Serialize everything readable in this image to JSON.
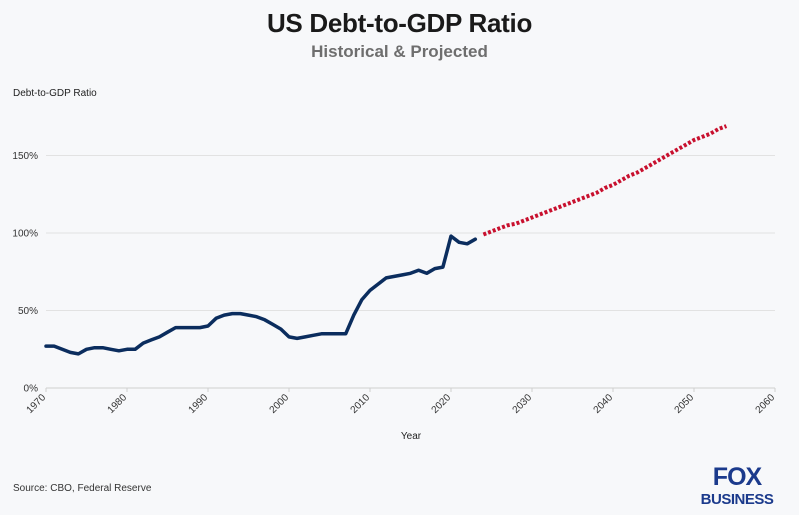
{
  "title": "US Debt-to-GDP Ratio",
  "subtitle": "Historical & Projected",
  "source": "Source: CBO, Federal Reserve",
  "logo": {
    "line1": "FOX",
    "line2": "BUSINESS",
    "color": "#1b3a8c"
  },
  "colors": {
    "historical": "#0b2d5e",
    "projected": "#c8102e",
    "grid": "#e2e2e2"
  },
  "chart_data": {
    "type": "line",
    "title": "US Debt-to-GDP Ratio",
    "subtitle": "Historical & Projected",
    "xlabel": "Year",
    "ylabel": "Debt-to-GDP Ratio",
    "xlim": [
      1970,
      2060
    ],
    "ylim": [
      0,
      180
    ],
    "x_ticks": [
      1970,
      1980,
      1990,
      2000,
      2010,
      2020,
      2030,
      2040,
      2050,
      2060
    ],
    "y_ticks": [
      0,
      50,
      100,
      150
    ],
    "y_tick_labels": [
      "0%",
      "50%",
      "100%",
      "150%"
    ],
    "grid": "horizontal",
    "series": [
      {
        "name": "",
        "style": "solid",
        "x": [
          1970,
          1971,
          1972,
          1973,
          1974,
          1975,
          1976,
          1977,
          1978,
          1979,
          1980,
          1981,
          1982,
          1983,
          1984,
          1985,
          1986,
          1987,
          1988,
          1989,
          1990,
          1991,
          1992,
          1993,
          1994,
          1995,
          1996,
          1997,
          1998,
          1999,
          2000,
          2001,
          2002,
          2003,
          2004,
          2005,
          2006,
          2007,
          2008,
          2009,
          2010,
          2011,
          2012,
          2013,
          2014,
          2015,
          2016,
          2017,
          2018,
          2019,
          2020,
          2021,
          2022,
          2023
        ],
        "values": [
          27,
          27,
          25,
          23,
          22,
          25,
          26,
          26,
          25,
          24,
          25,
          25,
          29,
          31,
          33,
          36,
          39,
          39,
          39,
          39,
          40,
          45,
          47,
          48,
          48,
          47,
          46,
          44,
          41,
          38,
          33,
          32,
          33,
          34,
          35,
          35,
          35,
          35,
          47,
          57,
          63,
          67,
          71,
          72,
          73,
          74,
          76,
          74,
          77,
          78,
          98,
          94,
          93,
          96
        ]
      },
      {
        "name": "",
        "style": "dotted",
        "x": [
          2024,
          2025,
          2026,
          2027,
          2028,
          2029,
          2030,
          2031,
          2032,
          2033,
          2034,
          2035,
          2036,
          2037,
          2038,
          2039,
          2040,
          2041,
          2042,
          2043,
          2044,
          2045,
          2046,
          2047,
          2048,
          2049,
          2050,
          2051,
          2052,
          2053,
          2054
        ],
        "values": [
          99,
          101,
          103,
          105,
          106,
          108,
          110,
          112,
          114,
          116,
          118,
          120,
          122,
          124,
          126,
          129,
          131,
          134,
          137,
          139,
          142,
          145,
          148,
          151,
          154,
          157,
          160,
          162,
          164,
          167,
          169
        ]
      }
    ]
  }
}
